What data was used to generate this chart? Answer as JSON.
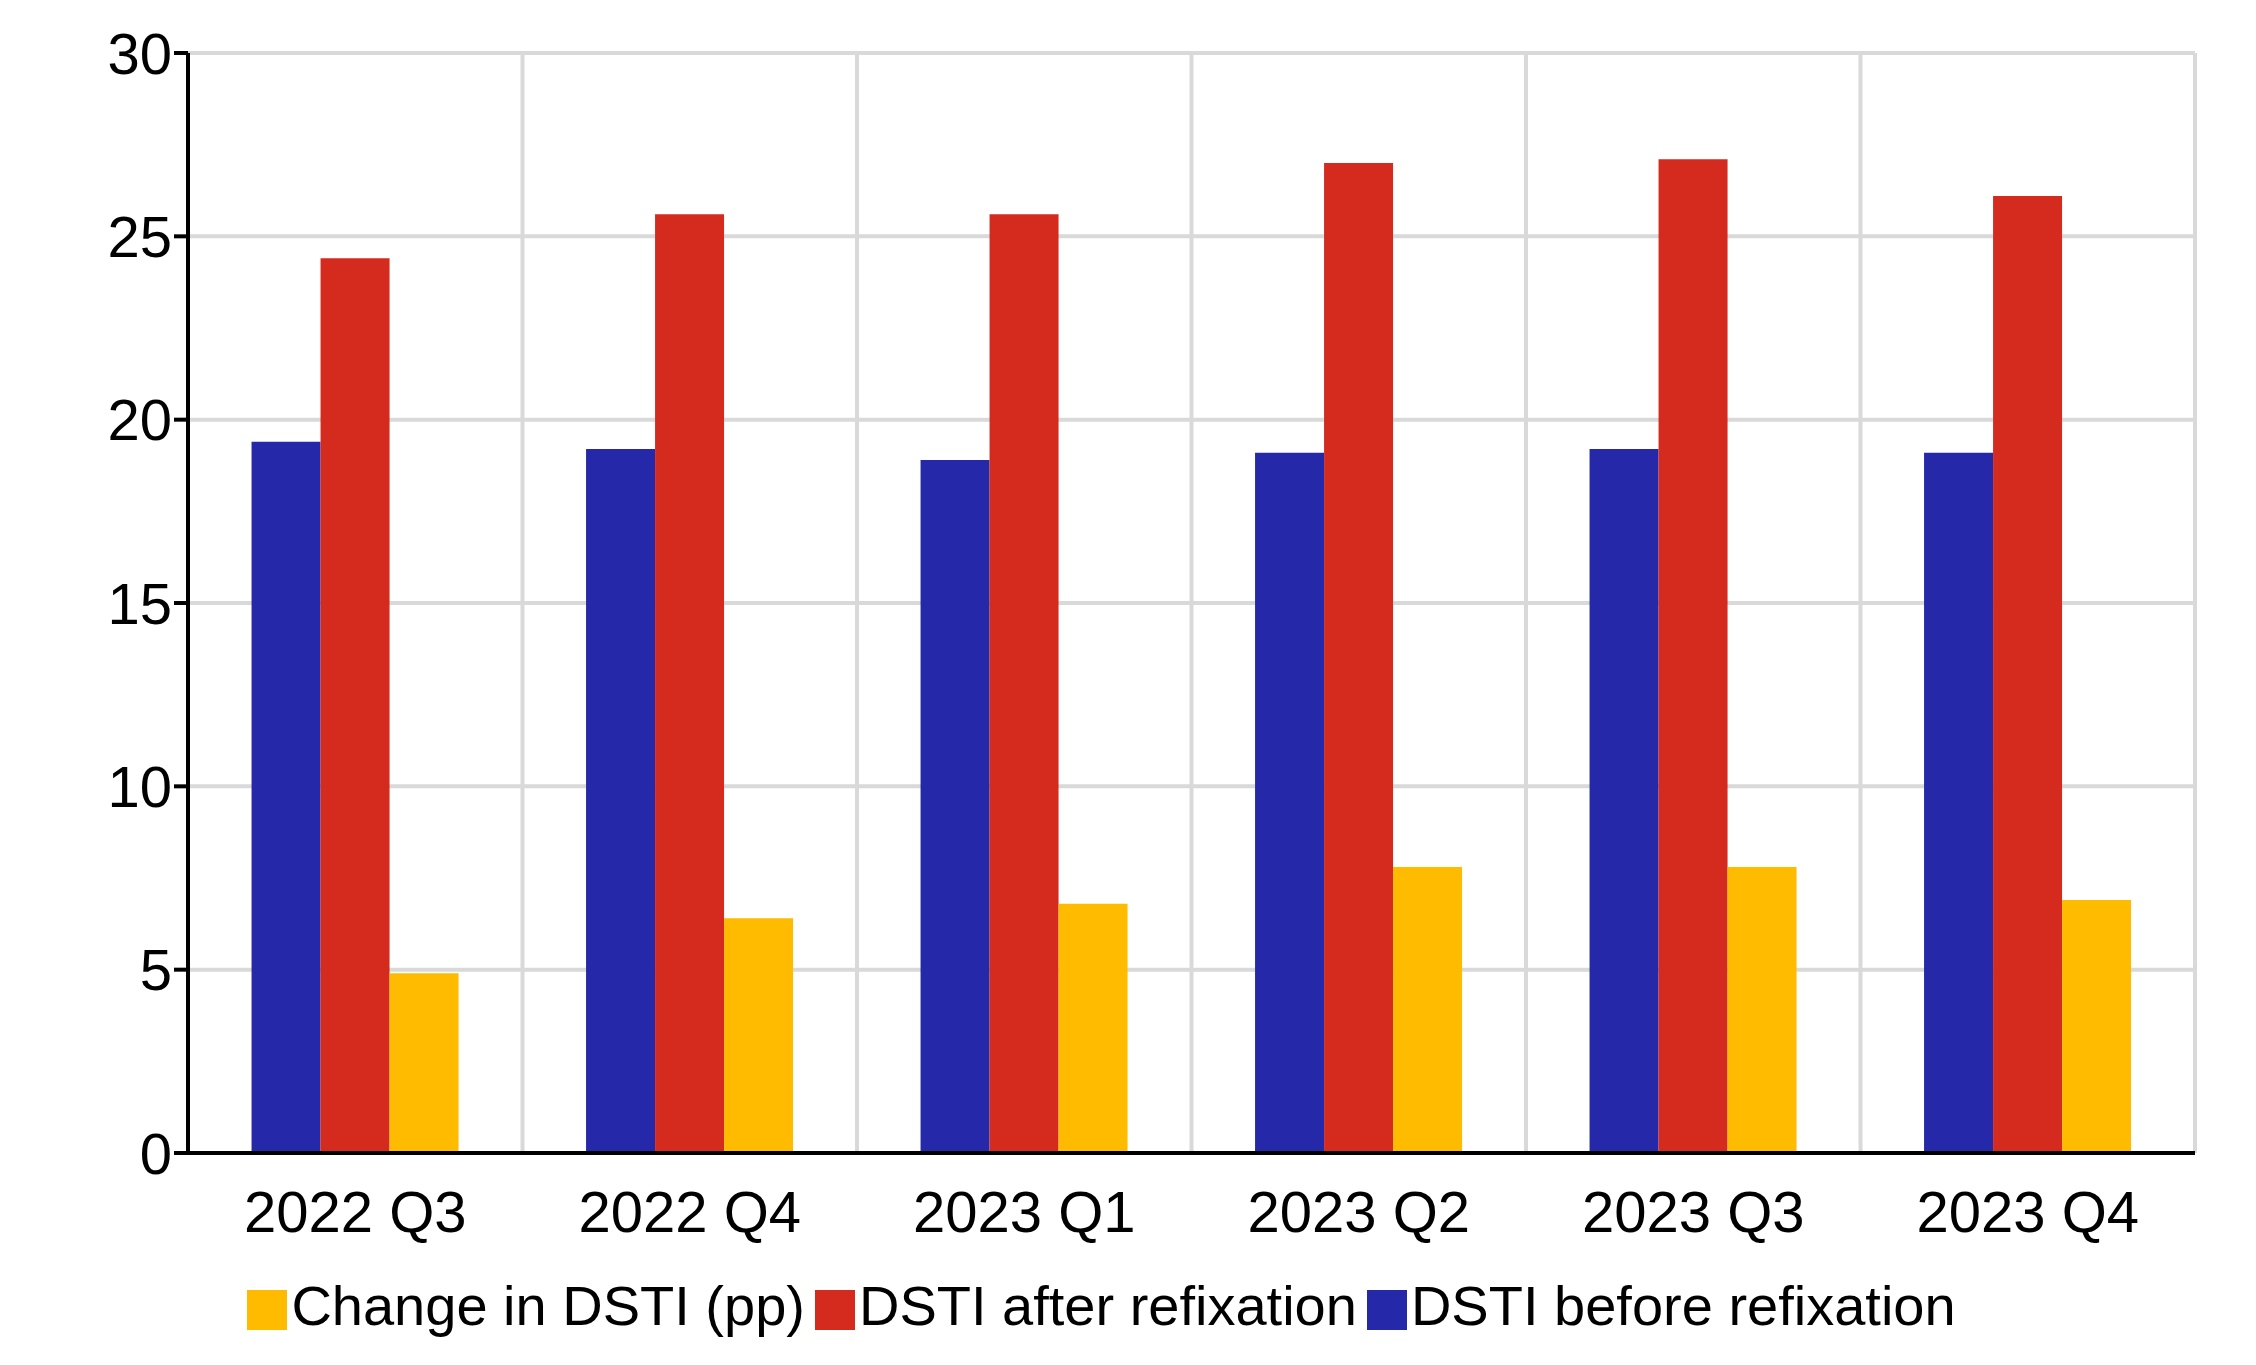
{
  "chart_data": {
    "type": "bar",
    "categories": [
      "2022 Q3",
      "2022 Q4",
      "2023 Q1",
      "2023 Q2",
      "2023 Q3",
      "2023 Q4"
    ],
    "series": [
      {
        "name": "DSTI before refixation",
        "color": "#2528a8",
        "values": [
          19.4,
          19.2,
          18.9,
          19.1,
          19.2,
          19.1
        ]
      },
      {
        "name": "DSTI after refixation",
        "color": "#d52b1e",
        "values": [
          24.4,
          25.6,
          25.6,
          27.0,
          27.1,
          26.1
        ]
      },
      {
        "name": "Change in DSTI (pp)",
        "color": "#ffbb00",
        "values": [
          4.9,
          6.4,
          6.8,
          7.8,
          7.8,
          6.9
        ]
      }
    ],
    "ylim": [
      0,
      30
    ],
    "yticks": [
      0,
      5,
      10,
      15,
      20,
      25,
      30
    ],
    "grid": true,
    "legend": "bottom"
  }
}
